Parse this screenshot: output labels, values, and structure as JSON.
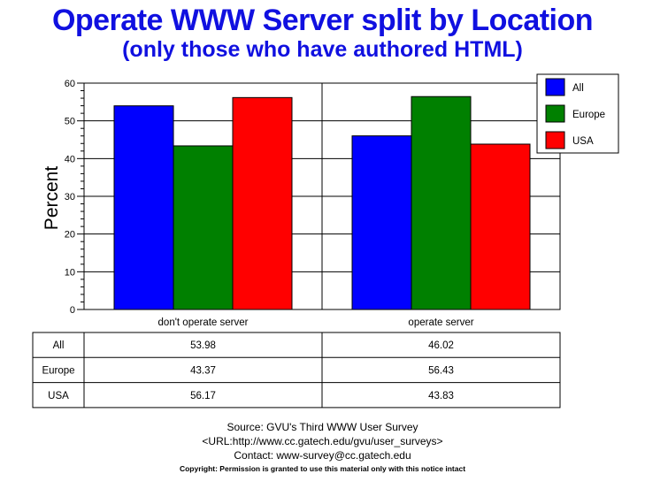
{
  "title": "Operate WWW Server split by Location",
  "subtitle": "(only those who have authored HTML)",
  "chart_data": {
    "type": "bar",
    "categories": [
      "don't operate server",
      "operate server"
    ],
    "series": [
      {
        "name": "All",
        "values": [
          53.98,
          46.02
        ],
        "color": "#0000ff"
      },
      {
        "name": "Europe",
        "values": [
          43.37,
          56.43
        ],
        "color": "#008000"
      },
      {
        "name": "USA",
        "values": [
          56.17,
          43.83
        ],
        "color": "#ff0000"
      }
    ],
    "ylabel": "Percent",
    "ylim": [
      0,
      60
    ],
    "yticks": [
      0,
      10,
      20,
      30,
      40,
      50,
      60
    ],
    "grid": true,
    "legend": "top-right",
    "table": {
      "row_labels": [
        "All",
        "Europe",
        "USA"
      ],
      "cells": [
        [
          "53.98",
          "46.02"
        ],
        [
          "43.37",
          "56.43"
        ],
        [
          "56.17",
          "43.83"
        ]
      ]
    }
  },
  "footer": {
    "source": "Source: GVU's Third WWW User Survey",
    "url": "<URL:http://www.cc.gatech.edu/gvu/user_surveys>",
    "contact": "Contact: www-survey@cc.gatech.edu",
    "copyright": "Copyright: Permission is granted to use this material only with this notice intact"
  }
}
